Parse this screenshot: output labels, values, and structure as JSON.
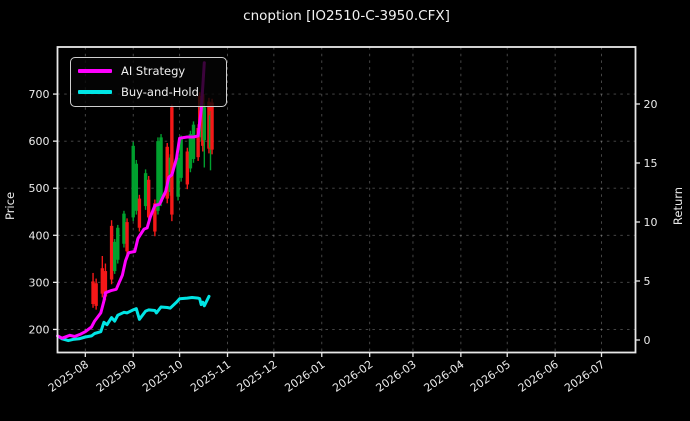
{
  "window": {
    "title": "cnoption [IO2510-C-3950.CFX]"
  },
  "colors": {
    "background": "#000000",
    "text": "#f0f0f0",
    "spine": "#e8e8e8",
    "grid": "rgba(255,255,255,0.30)",
    "ai_strategy": "#ff00ff",
    "buy_and_hold": "#00e5e5",
    "candle_up": "#00a02e",
    "candle_down": "#f51818"
  },
  "legend": {
    "position": "upper-left"
  },
  "chart_data": {
    "type": "line+candlestick",
    "title": "cnoption [IO2510-C-3950.CFX]",
    "grid": true,
    "legend_position": "upper-left",
    "left_axis": {
      "label": "Price",
      "ticks": [
        200,
        300,
        400,
        500,
        600,
        700
      ],
      "range": [
        151,
        800
      ]
    },
    "right_axis": {
      "label": "Return",
      "ticks": [
        0,
        5,
        10,
        15,
        20
      ],
      "range": [
        -1.06,
        24.83
      ]
    },
    "x_axis": {
      "range": [
        "2025-07-14",
        "2026-07-23"
      ],
      "tick_rotation": -35,
      "ticks": [
        {
          "label": "2025-08",
          "date": "2025-08-01"
        },
        {
          "label": "2025-09",
          "date": "2025-09-01"
        },
        {
          "label": "2025-10",
          "date": "2025-10-01"
        },
        {
          "label": "2025-11",
          "date": "2025-11-01"
        },
        {
          "label": "2025-12",
          "date": "2025-12-01"
        },
        {
          "label": "2026-01",
          "date": "2026-01-01"
        },
        {
          "label": "2026-02",
          "date": "2026-02-01"
        },
        {
          "label": "2026-03",
          "date": "2026-03-01"
        },
        {
          "label": "2026-04",
          "date": "2026-04-01"
        },
        {
          "label": "2026-05",
          "date": "2026-05-01"
        },
        {
          "label": "2026-06",
          "date": "2026-06-01"
        },
        {
          "label": "2026-07",
          "date": "2026-07-01"
        }
      ]
    },
    "series": [
      {
        "name": "AI Strategy",
        "type": "line",
        "axis": "right",
        "color": "#ff00ff",
        "points": [
          [
            "2025-07-14",
            0.35
          ],
          [
            "2025-07-17",
            0.15
          ],
          [
            "2025-07-22",
            0.4
          ],
          [
            "2025-07-25",
            0.3
          ],
          [
            "2025-07-29",
            0.5
          ],
          [
            "2025-08-01",
            0.7
          ],
          [
            "2025-08-05",
            1.1
          ],
          [
            "2025-08-07",
            1.6
          ],
          [
            "2025-08-11",
            2.3
          ],
          [
            "2025-08-13",
            3.3
          ],
          [
            "2025-08-14",
            4.0
          ],
          [
            "2025-08-18",
            4.2
          ],
          [
            "2025-08-21",
            4.3
          ],
          [
            "2025-08-25",
            5.5
          ],
          [
            "2025-08-27",
            6.7
          ],
          [
            "2025-08-29",
            7.4
          ],
          [
            "2025-09-02",
            7.5
          ],
          [
            "2025-09-04",
            8.6
          ],
          [
            "2025-09-08",
            9.4
          ],
          [
            "2025-09-10",
            9.5
          ],
          [
            "2025-09-12",
            10.4
          ],
          [
            "2025-09-15",
            11.4
          ],
          [
            "2025-09-18",
            11.5
          ],
          [
            "2025-09-22",
            12.6
          ],
          [
            "2025-09-24",
            13.8
          ],
          [
            "2025-09-26",
            14.0
          ],
          [
            "2025-09-29",
            15.4
          ],
          [
            "2025-10-01",
            17.1
          ],
          [
            "2025-10-06",
            17.2
          ],
          [
            "2025-10-10",
            17.2
          ],
          [
            "2025-10-13",
            17.3
          ],
          [
            "2025-10-15",
            19.5
          ],
          [
            "2025-10-16",
            21.5
          ],
          [
            "2025-10-17",
            23.5
          ]
        ]
      },
      {
        "name": "Buy-and-Hold",
        "type": "line",
        "axis": "right",
        "color": "#00e5e5",
        "points": [
          [
            "2025-07-14",
            0.35
          ],
          [
            "2025-07-17",
            0.1
          ],
          [
            "2025-07-21",
            -0.05
          ],
          [
            "2025-07-24",
            0.05
          ],
          [
            "2025-07-28",
            0.1
          ],
          [
            "2025-08-01",
            0.25
          ],
          [
            "2025-08-05",
            0.35
          ],
          [
            "2025-08-07",
            0.55
          ],
          [
            "2025-08-11",
            0.7
          ],
          [
            "2025-08-13",
            1.5
          ],
          [
            "2025-08-15",
            1.3
          ],
          [
            "2025-08-18",
            1.9
          ],
          [
            "2025-08-20",
            1.6
          ],
          [
            "2025-08-22",
            2.1
          ],
          [
            "2025-08-26",
            2.35
          ],
          [
            "2025-08-28",
            2.3
          ],
          [
            "2025-09-01",
            2.55
          ],
          [
            "2025-09-03",
            2.65
          ],
          [
            "2025-09-05",
            1.75
          ],
          [
            "2025-09-09",
            2.45
          ],
          [
            "2025-09-11",
            2.55
          ],
          [
            "2025-09-15",
            2.5
          ],
          [
            "2025-09-16",
            2.3
          ],
          [
            "2025-09-19",
            2.8
          ],
          [
            "2025-09-23",
            2.75
          ],
          [
            "2025-09-25",
            2.7
          ],
          [
            "2025-09-29",
            3.2
          ],
          [
            "2025-10-01",
            3.5
          ],
          [
            "2025-10-06",
            3.55
          ],
          [
            "2025-10-09",
            3.6
          ],
          [
            "2025-10-13",
            3.55
          ],
          [
            "2025-10-14",
            3.5
          ],
          [
            "2025-10-15",
            3.0
          ],
          [
            "2025-10-16",
            3.2
          ],
          [
            "2025-10-17",
            2.9
          ],
          [
            "2025-10-20",
            3.7
          ]
        ]
      }
    ],
    "candles": {
      "axis": "left",
      "columns": [
        "date",
        "open",
        "high",
        "low",
        "close"
      ],
      "rows": [
        [
          "2025-08-06",
          302,
          320,
          246,
          254
        ],
        [
          "2025-08-08",
          298,
          308,
          242,
          250
        ],
        [
          "2025-08-12",
          330,
          356,
          268,
          276
        ],
        [
          "2025-08-14",
          324,
          340,
          262,
          270
        ],
        [
          "2025-08-18",
          420,
          432,
          296,
          306
        ],
        [
          "2025-08-20",
          324,
          392,
          318,
          386
        ],
        [
          "2025-08-22",
          348,
          422,
          340,
          416
        ],
        [
          "2025-08-26",
          382,
          452,
          374,
          446
        ],
        [
          "2025-08-28",
          428,
          436,
          358,
          366
        ],
        [
          "2025-09-01",
          438,
          598,
          430,
          590
        ],
        [
          "2025-09-03",
          452,
          560,
          444,
          552
        ],
        [
          "2025-09-05",
          478,
          486,
          408,
          416
        ],
        [
          "2025-09-09",
          462,
          540,
          454,
          532
        ],
        [
          "2025-09-11",
          518,
          526,
          428,
          438
        ],
        [
          "2025-09-15",
          468,
          476,
          398,
          408
        ],
        [
          "2025-09-17",
          452,
          608,
          444,
          600
        ],
        [
          "2025-09-19",
          470,
          615,
          462,
          608
        ],
        [
          "2025-09-23",
          588,
          596,
          468,
          478
        ],
        [
          "2025-09-25",
          492,
          572,
          484,
          565
        ],
        [
          "2025-09-26",
          672,
          678,
          430,
          444
        ],
        [
          "2025-09-30",
          482,
          572,
          474,
          565
        ],
        [
          "2025-10-02",
          522,
          612,
          514,
          605
        ],
        [
          "2025-10-06",
          578,
          586,
          498,
          508
        ],
        [
          "2025-10-08",
          542,
          622,
          534,
          615
        ],
        [
          "2025-10-10",
          562,
          642,
          554,
          635
        ],
        [
          "2025-10-13",
          628,
          636,
          558,
          566
        ],
        [
          "2025-10-14",
          696,
          704,
          612,
          622
        ],
        [
          "2025-10-15",
          608,
          688,
          600,
          680
        ],
        [
          "2025-10-16",
          700,
          706,
          578,
          590
        ],
        [
          "2025-10-17",
          602,
          680,
          544,
          672
        ],
        [
          "2025-10-20",
          684,
          692,
          574,
          584
        ],
        [
          "2025-10-21",
          586,
          664,
          538,
          655
        ],
        [
          "2025-10-22",
          682,
          690,
          572,
          582
        ]
      ]
    }
  }
}
